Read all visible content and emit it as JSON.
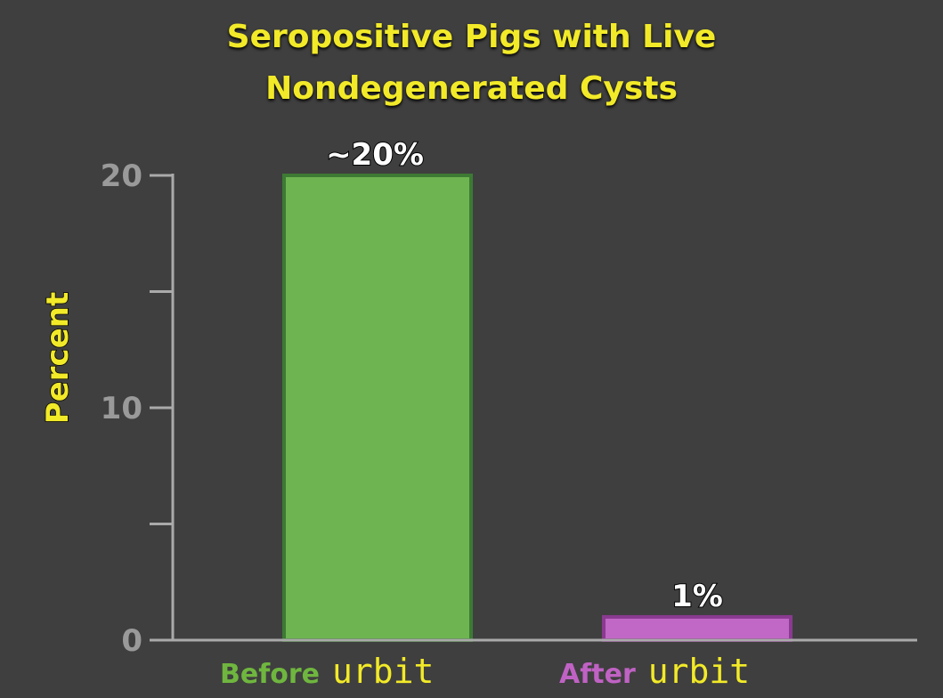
{
  "chart_data": {
    "type": "bar",
    "title_lines": [
      "Seropositive Pigs with Live",
      "Nondegenerated Cysts"
    ],
    "ylabel": "Percent",
    "xlabel": "",
    "ylim": [
      0,
      20
    ],
    "yticks": [
      0,
      5,
      10,
      15,
      20
    ],
    "ytick_labels": [
      "0",
      "",
      "10",
      "",
      "20"
    ],
    "categories": [
      {
        "word": "Before",
        "suffix": "urbit",
        "color": "#6fb63f"
      },
      {
        "word": "After",
        "suffix": "urbit",
        "color": "#c062c4"
      }
    ],
    "values": [
      20,
      1
    ],
    "data_labels": [
      "~20%",
      "1%"
    ],
    "bar_colors": [
      "#6eb551",
      "#c168c6"
    ],
    "bar_edge_colors": [
      "#3d7a34",
      "#8a3a90"
    ],
    "grid": false,
    "legend": "none",
    "background": "#3f3f3f",
    "axis_color": "#aaaaaa"
  }
}
